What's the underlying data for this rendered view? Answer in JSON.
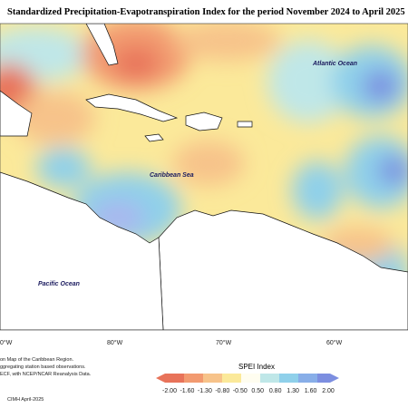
{
  "title": "Standardized Precipitation-Evapotranspiration Index for the period November 2024 to April 2025",
  "map": {
    "ocean_labels": [
      "Atlantic Ocean",
      "Caribbean Sea",
      "Pacific Ocean"
    ],
    "longitude_labels": [
      "0°W",
      "80°W",
      "70°W",
      "60°W"
    ]
  },
  "notes": [
    "on Map of the Caribbean Region.",
    "ggregating station based observations.",
    "ECF, with NCEP/NCAR Reanalysis Data."
  ],
  "credit": "CIMH April-2025",
  "legend": {
    "title": "SPEI Index",
    "ticks": [
      "-2.00",
      "-1.60",
      "-1.30",
      "-0.80",
      "-0.50",
      "0.50",
      "0.80",
      "1.30",
      "1.60",
      "2.00"
    ]
  }
}
